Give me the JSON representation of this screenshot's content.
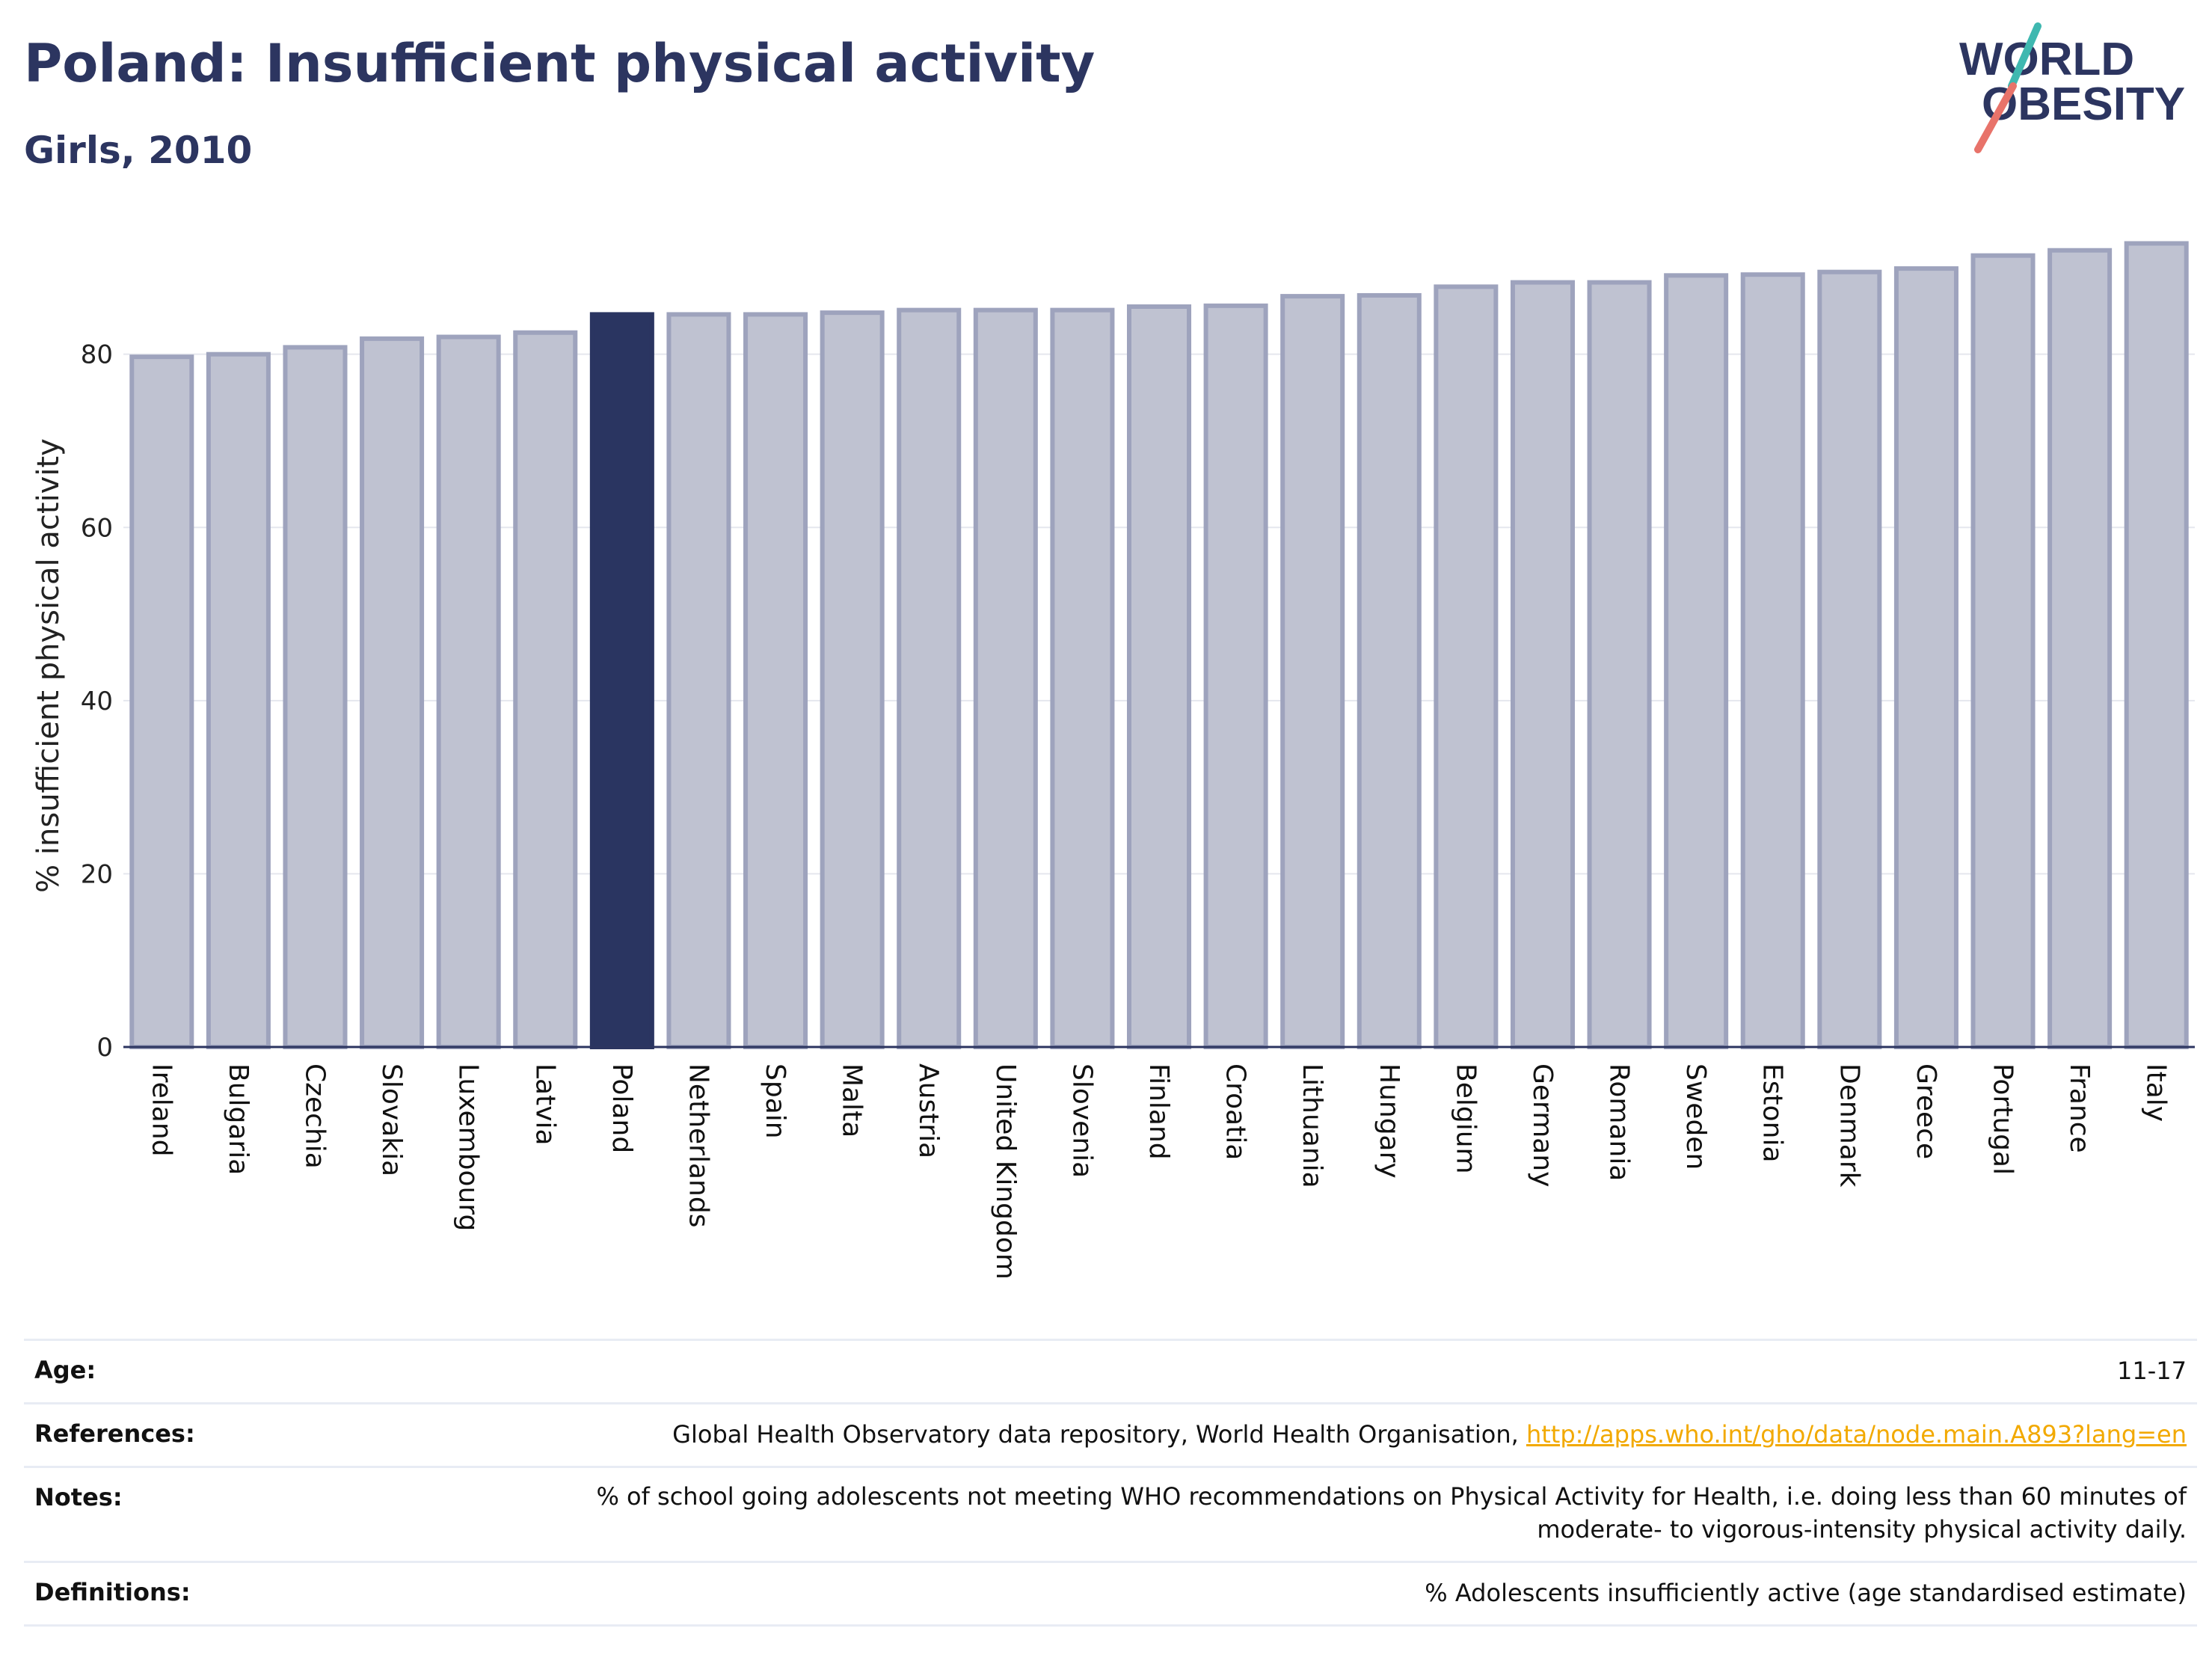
{
  "header": {
    "title": "Poland: Insufficient physical activity",
    "subtitle": "Girls, 2010"
  },
  "logo": {
    "line1": "WORLD",
    "line2": "OBESITY",
    "accent_teal": "#3fb8b0",
    "accent_red": "#e8736a",
    "text_color": "#2c3560"
  },
  "chart_data": {
    "type": "bar",
    "title": "Poland: Insufficient physical activity",
    "subtitle": "Girls, 2010",
    "xlabel": "",
    "ylabel": "% insufficient physical activity",
    "ylim": [
      0,
      95
    ],
    "yticks": [
      0,
      20,
      40,
      60,
      80
    ],
    "grid": true,
    "highlight": "Poland",
    "colors": {
      "bar": "#bfc2d1",
      "bar_edge": "#9ea3bd",
      "highlight": "#2a3561",
      "grid": "#e5e7ee",
      "axis": "#2c3560"
    },
    "categories": [
      "Ireland",
      "Bulgaria",
      "Czechia",
      "Slovakia",
      "Luxembourg",
      "Latvia",
      "Poland",
      "Netherlands",
      "Spain",
      "Malta",
      "Austria",
      "United Kingdom",
      "Slovenia",
      "Finland",
      "Croatia",
      "Lithuania",
      "Hungary",
      "Belgium",
      "Germany",
      "Romania",
      "Sweden",
      "Estonia",
      "Denmark",
      "Greece",
      "Portugal",
      "France",
      "Italy"
    ],
    "values": [
      79.7,
      80.0,
      80.8,
      81.8,
      82.0,
      82.5,
      84.6,
      84.6,
      84.6,
      84.8,
      85.1,
      85.1,
      85.1,
      85.5,
      85.6,
      86.7,
      86.8,
      87.8,
      88.3,
      88.3,
      89.1,
      89.2,
      89.5,
      89.9,
      91.4,
      92.0,
      92.8
    ]
  },
  "info": {
    "age": {
      "label": "Age:",
      "value": "11-17"
    },
    "references": {
      "label": "References:",
      "value": "Global Health Observatory data repository, World Health Organisation, ",
      "link": "http://apps.who.int/gho/data/node.main.A893?lang=en"
    },
    "notes": {
      "label": "Notes:",
      "value_line1": "% of school going adolescents not meeting WHO recommendations on Physical Activity for Health, i.e. doing less than 60 minutes of",
      "value_line2": "moderate- to vigorous-intensity physical activity daily."
    },
    "definitions": {
      "label": "Definitions:",
      "value": "% Adolescents insufficiently active (age standardised estimate)"
    }
  }
}
